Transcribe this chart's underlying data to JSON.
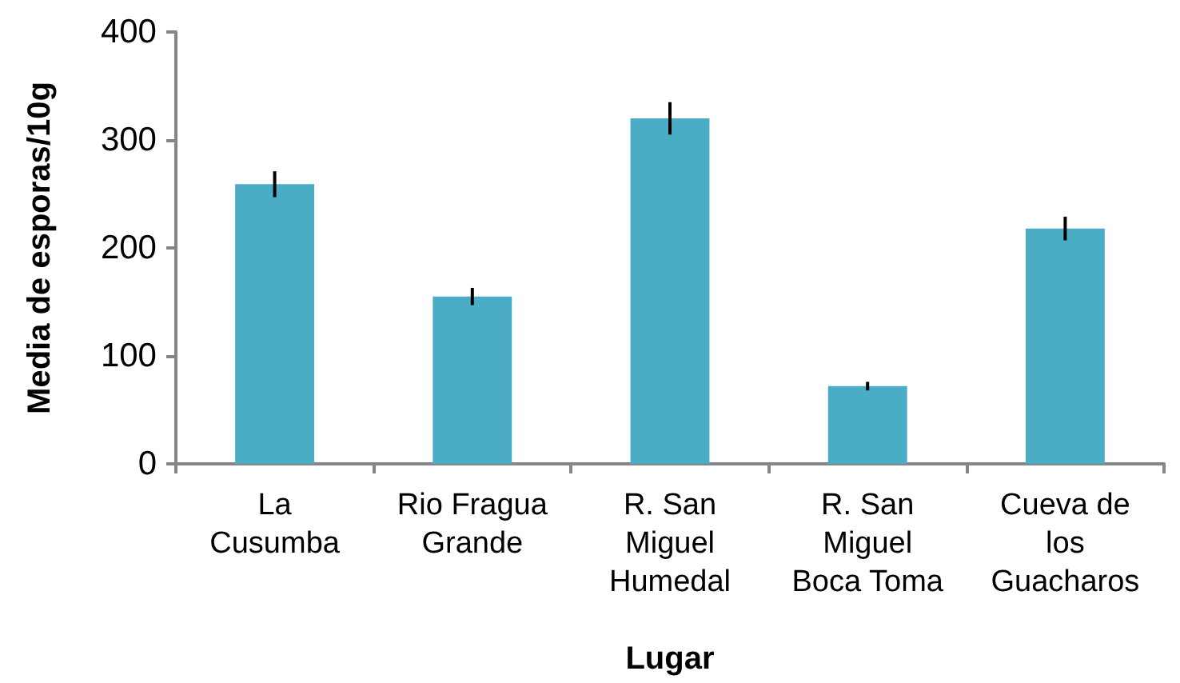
{
  "chart_data": {
    "type": "bar",
    "xlabel": "Lugar",
    "ylabel": "Media de esporas/10g",
    "categories": [
      "La\nCusumba",
      "Rio Fragua\nGrande",
      "R. San\nMiguel\nHumedal",
      "R. San\nMiguel\nBoca Toma",
      "Cueva de\nlos\nGuacharos"
    ],
    "values": [
      259,
      155,
      320,
      72,
      218
    ],
    "errors": [
      12,
      8,
      15,
      4,
      11
    ],
    "color": "#4bacc6",
    "ylim": [
      0,
      400
    ],
    "yticks": [
      0,
      100,
      200,
      300,
      400
    ],
    "grid": false
  }
}
